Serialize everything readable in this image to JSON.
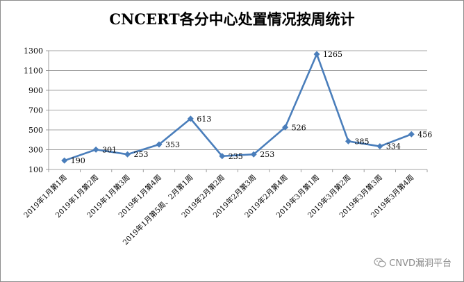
{
  "chart_data": {
    "type": "line",
    "title": "CNCERT各分中心处置情况按周统计",
    "categories": [
      "2019年1月第1周",
      "2019年1月第2周",
      "2019年1月第3周",
      "2019年1月第4周",
      "2019年1月第5周、2月第1周",
      "2019年2月第2周",
      "2019年2月第3周",
      "2019年2月第4周",
      "2019年3月第1周",
      "2019年3月第2周",
      "2019年3月第3周",
      "2019年3月第4周"
    ],
    "values": [
      190,
      301,
      253,
      353,
      613,
      235,
      253,
      526,
      1265,
      385,
      334,
      456
    ],
    "value_labels": [
      "190",
      "301",
      "253",
      "353",
      "613",
      "235",
      "253",
      "526",
      "1265",
      "385",
      "334",
      "456"
    ],
    "ylim": [
      100,
      1300
    ],
    "yticks": [
      100,
      300,
      500,
      700,
      900,
      1100,
      1300
    ],
    "ytick_labels": [
      "100",
      "300",
      "500",
      "700",
      "900",
      "1100",
      "1300"
    ],
    "xlabel": "",
    "ylabel": "",
    "grid": true,
    "legend": "none",
    "colors": {
      "line": "#4a7ebb",
      "marker": "#4a7ebb",
      "grid": "#868686",
      "axis": "#868686",
      "text": "#000000"
    }
  },
  "watermark": {
    "text": "CNVD漏洞平台",
    "icon": "wechat-icon"
  }
}
